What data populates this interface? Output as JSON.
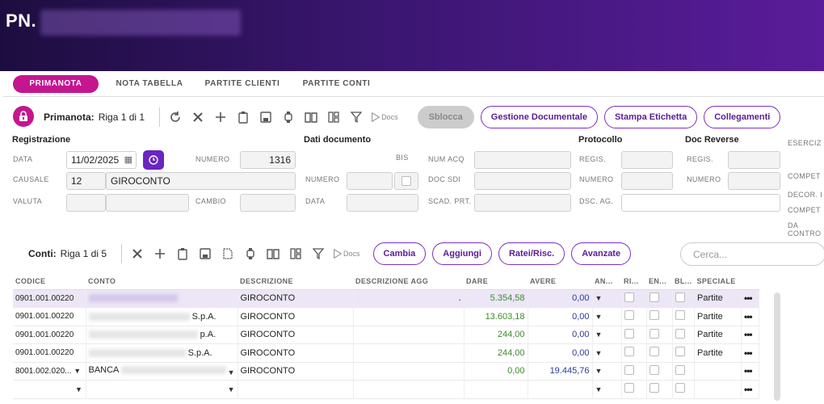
{
  "header": {
    "title": "PN."
  },
  "tabs": [
    "PRIMANOTA",
    "NOTA TABELLA",
    "PARTITE CLIENTI",
    "PARTITE CONTI"
  ],
  "toolbar1": {
    "label": "Primanota:",
    "counter": "Riga 1 di 1",
    "docs": "Docs",
    "sblocca": "Sblocca",
    "gestione": "Gestione Documentale",
    "stampa": "Stampa Etichetta",
    "collegamenti": "Collegamenti"
  },
  "registrazione": {
    "title": "Registrazione",
    "data_label": "DATA",
    "data": "11/02/2025",
    "numero_label": "NUMERO",
    "numero": "1316",
    "causale_label": "CAUSALE",
    "causale_code": "12",
    "causale_desc": "GIROCONTO",
    "valuta_label": "VALUTA",
    "cambio_label": "CAMBIO"
  },
  "dati": {
    "title": "Dati documento",
    "bis": "BIS",
    "numero": "NUMERO",
    "data": "DATA",
    "num_acq": "NUM ACQ",
    "doc_sdi": "DOC SDI",
    "scad_prt": "SCAD. PRT."
  },
  "protocollo": {
    "title": "Protocollo",
    "regis": "REGIS.",
    "numero": "NUMERO",
    "dsc_ag": "DSC. AG."
  },
  "reverse": {
    "title": "Doc Reverse",
    "regis": "REGIS.",
    "numero": "NUMERO"
  },
  "right_labels": [
    "ESERCIZ",
    "COMPET",
    "DECOR. I",
    "COMPET",
    "DA",
    "CONTRO"
  ],
  "toolbar2": {
    "label": "Conti:",
    "counter": "Riga 1 di 5",
    "docs": "Docs",
    "cambia": "Cambia",
    "aggiungi": "Aggiungi",
    "ratei": "Ratei/Risc.",
    "avanzate": "Avanzate",
    "search_placeholder": "Cerca..."
  },
  "table": {
    "headers": [
      "CODICE",
      "CONTO",
      "DESCRIZIONE",
      "DESCRIZIONE AGG",
      "DARE",
      "AVERE",
      "AN...",
      "RI...",
      "EN...",
      "BL...",
      "SPECIALE"
    ],
    "rows": [
      {
        "codice": "0901.001.00220",
        "conto": "",
        "descr": "GIROCONTO",
        "agg": ".",
        "dare": "5.354,58",
        "avere": "0,00",
        "speciale": "Partite"
      },
      {
        "codice": "0901.001.00220",
        "conto": "S.p.A.",
        "descr": "GIROCONTO",
        "agg": "",
        "dare": "13.603,18",
        "avere": "0,00",
        "speciale": "Partite"
      },
      {
        "codice": "0901.001.00220",
        "conto": "p.A.",
        "descr": "GIROCONTO",
        "agg": "",
        "dare": "244,00",
        "avere": "0,00",
        "speciale": "Partite"
      },
      {
        "codice": "0901.001.00220",
        "conto": "S.p.A.",
        "descr": "GIROCONTO",
        "agg": "",
        "dare": "244,00",
        "avere": "0,00",
        "speciale": "Partite"
      },
      {
        "codice": "8001.002.020...",
        "conto": "BANCA",
        "descr": "GIROCONTO",
        "agg": "",
        "dare": "0,00",
        "avere": "19.445,76",
        "speciale": ""
      },
      {
        "codice": "",
        "conto": "",
        "descr": "",
        "agg": "",
        "dare": "",
        "avere": "",
        "speciale": ""
      }
    ]
  }
}
